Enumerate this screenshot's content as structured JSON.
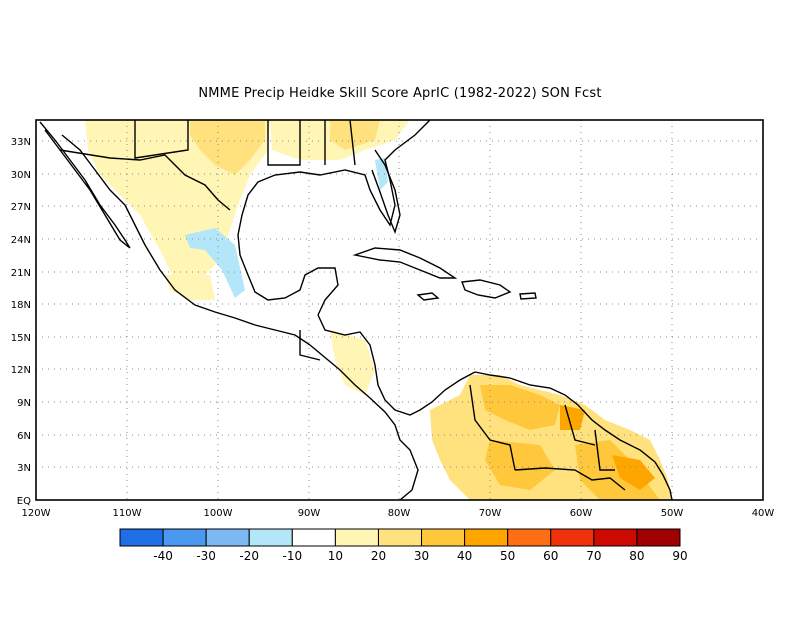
{
  "title": "NMME Precip Heidke Skill Score AprIC (1982-2022) SON Fcst",
  "map": {
    "lon_range": [
      -120,
      -40
    ],
    "lat_range": [
      0,
      35
    ],
    "x_ticks": [
      "120W",
      "110W",
      "100W",
      "90W",
      "80W",
      "70W",
      "60W",
      "50W",
      "40W"
    ],
    "y_ticks": [
      "EQ",
      "3N",
      "6N",
      "9N",
      "12N",
      "15N",
      "18N",
      "21N",
      "24N",
      "27N",
      "30N",
      "33N"
    ],
    "grid": "dotted"
  },
  "colorbar": {
    "labels": [
      "-40",
      "-30",
      "-20",
      "-10",
      "10",
      "20",
      "30",
      "40",
      "50",
      "60",
      "70",
      "80",
      "90"
    ],
    "colors": [
      "#1e6fe6",
      "#4a98f0",
      "#7dbaf5",
      "#b4e6f9",
      "#ffffff",
      "#fff5b4",
      "#ffe17d",
      "#ffc83c",
      "#ffa500",
      "#ff6e14",
      "#f0320a",
      "#cd0a00",
      "#a00000"
    ]
  },
  "colors": {
    "positive_light": "#fff5b4",
    "positive_mid": "#ffe17d",
    "positive_strong": "#ffc83c",
    "positive_peak": "#ffa500",
    "negative_light": "#b4e6f9",
    "coast": "#000000"
  }
}
